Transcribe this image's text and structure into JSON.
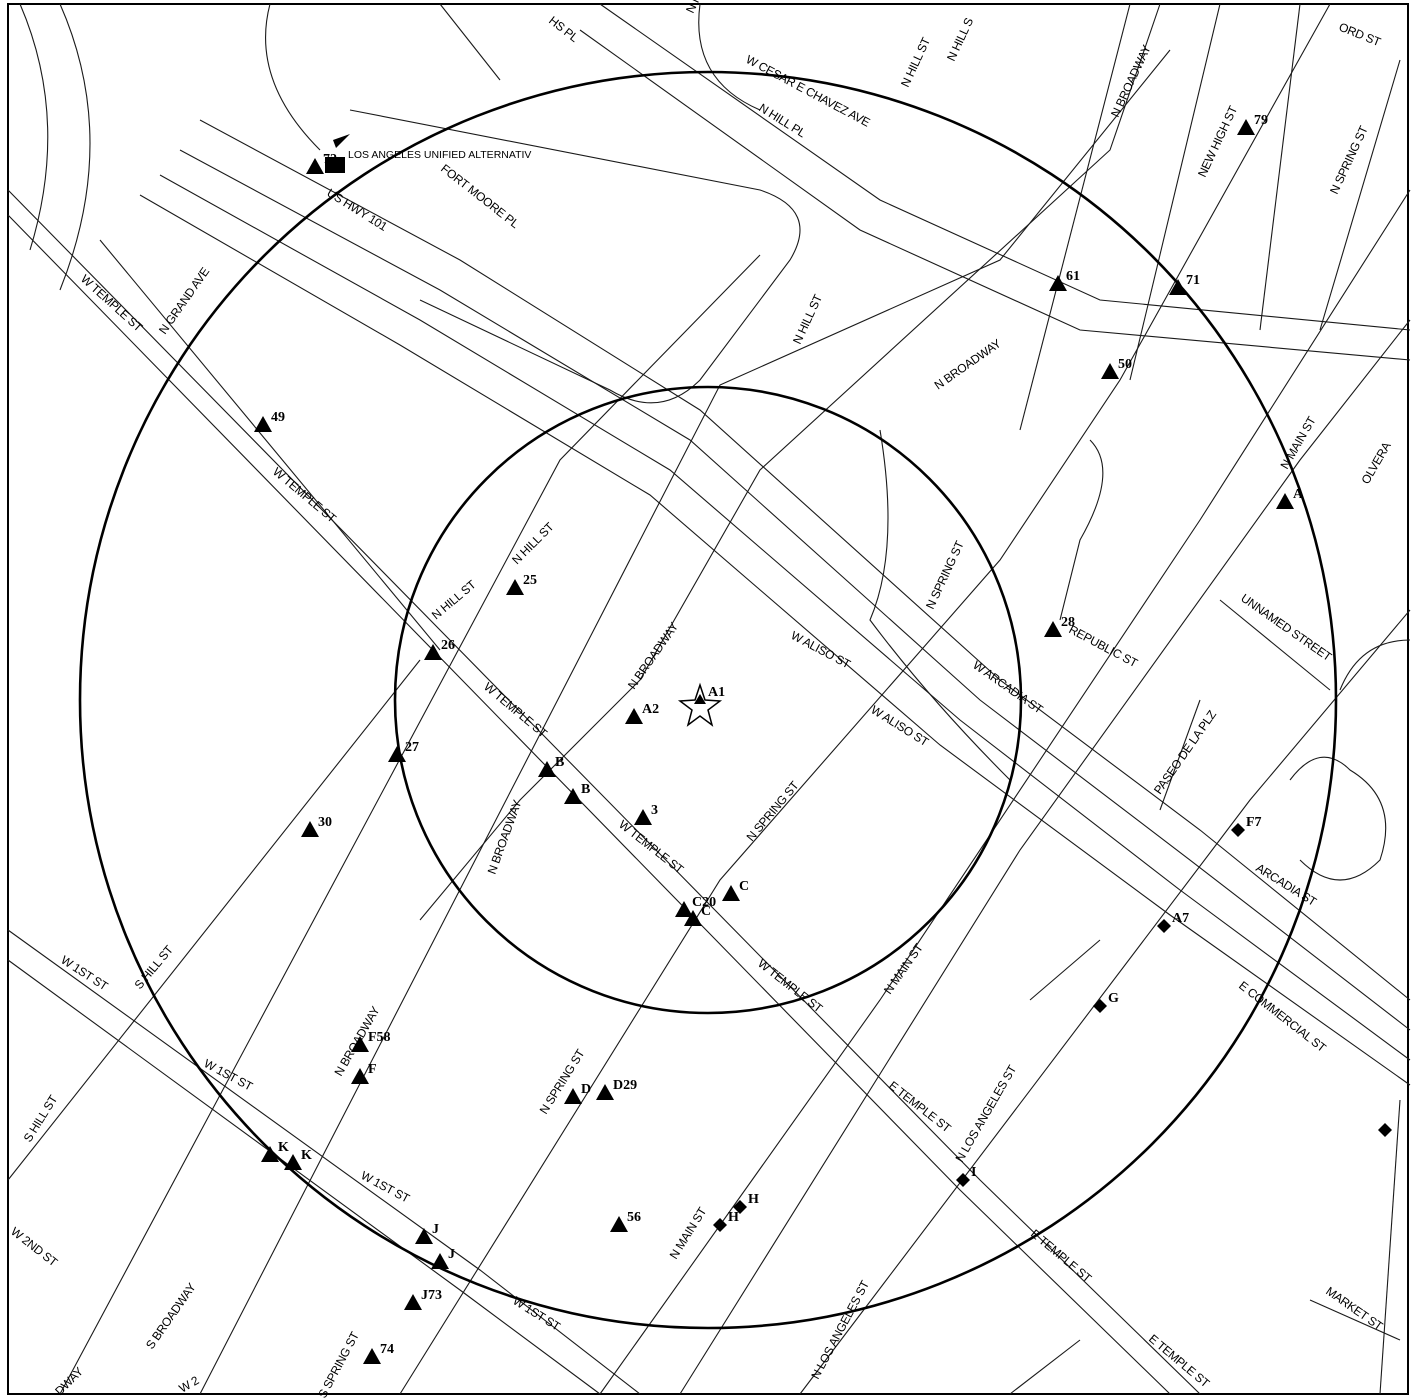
{
  "site": {
    "label": "LOS ANGELES UNIFIED ALTERNATIV",
    "icon": "square-building-icon",
    "marker_number": "72"
  },
  "center_marker": {
    "label": "A1",
    "icon": "star-icon"
  },
  "street_labels": [
    "HS PL",
    "N HI",
    "N HILL ST",
    "N HILL S",
    "W CESAR E CHAVEZ AVE",
    "N HILL PL",
    "N BROADWAY",
    "ORD ST",
    "NEW HIGH ST",
    "N SPRING ST",
    "US HWY 101",
    "FORT MOORE PL",
    "N GRAND AVE",
    "W TEMPLE ST",
    "N HILL ST",
    "N BROADWAY",
    "W TEMPLE ST",
    "N MAIN ST",
    "OLVERA",
    "N SPRING ST",
    "N HILL ST",
    "N HILL ST",
    "N BROADWAY",
    "W ALISO ST",
    "REPUBLIC ST",
    "UNNAMED STREET",
    "W TEMPLE ST",
    "W ARCADIA ST",
    "W ALISO ST",
    "PASEO DE LA PLZ",
    "N SPRING ST",
    "N BROADWAY",
    "W TEMPLE ST",
    "ARCADIA ST",
    "W 1ST ST",
    "S HILL ST",
    "N MAIN ST",
    "E COMMERCIAL ST",
    "N BROADWAY",
    "W 1ST ST",
    "N SPRING ST",
    "W TEMPLE ST",
    "E TEMPLE ST",
    "N LOS ANGELES ST",
    "S HILL ST",
    "W 1ST ST",
    "W 2ND ST",
    "S BROADWAY",
    "N MAIN ST",
    "E TEMPLE ST",
    "W 1ST ST",
    "S SPRING ST",
    "N LOS ANGELES ST",
    "MARKET ST",
    "E TEMPLE ST",
    "DWAY",
    "W 2"
  ],
  "markers": [
    {
      "label": "72",
      "shape": "triangle"
    },
    {
      "label": "79",
      "shape": "triangle"
    },
    {
      "label": "61",
      "shape": "triangle"
    },
    {
      "label": "71",
      "shape": "triangle"
    },
    {
      "label": "50",
      "shape": "triangle"
    },
    {
      "label": "49",
      "shape": "triangle"
    },
    {
      "label": "A",
      "shape": "triangle"
    },
    {
      "label": "25",
      "shape": "triangle"
    },
    {
      "label": "28",
      "shape": "triangle"
    },
    {
      "label": "26",
      "shape": "triangle"
    },
    {
      "label": "A2",
      "shape": "triangle"
    },
    {
      "label": "27",
      "shape": "triangle"
    },
    {
      "label": "B",
      "shape": "triangle"
    },
    {
      "label": "B",
      "shape": "triangle"
    },
    {
      "label": "3",
      "shape": "triangle"
    },
    {
      "label": "30",
      "shape": "triangle"
    },
    {
      "label": "C",
      "shape": "triangle"
    },
    {
      "label": "C20",
      "shape": "triangle"
    },
    {
      "label": "C",
      "shape": "triangle"
    },
    {
      "label": "F7",
      "shape": "diamond"
    },
    {
      "label": "A7",
      "shape": "diamond"
    },
    {
      "label": "G",
      "shape": "diamond"
    },
    {
      "label": "F58",
      "shape": "triangle"
    },
    {
      "label": "F",
      "shape": "triangle"
    },
    {
      "label": "D",
      "shape": "triangle"
    },
    {
      "label": "D29",
      "shape": "triangle"
    },
    {
      "label": "K",
      "shape": "triangle"
    },
    {
      "label": "K",
      "shape": "triangle"
    },
    {
      "label": "I",
      "shape": "diamond"
    },
    {
      "label": "H",
      "shape": "diamond"
    },
    {
      "label": "H",
      "shape": "diamond"
    },
    {
      "label": "56",
      "shape": "triangle"
    },
    {
      "label": "J",
      "shape": "triangle"
    },
    {
      "label": "J",
      "shape": "triangle"
    },
    {
      "label": "J73",
      "shape": "triangle"
    },
    {
      "label": "74",
      "shape": "triangle"
    },
    {
      "label": "",
      "shape": "diamond"
    }
  ]
}
